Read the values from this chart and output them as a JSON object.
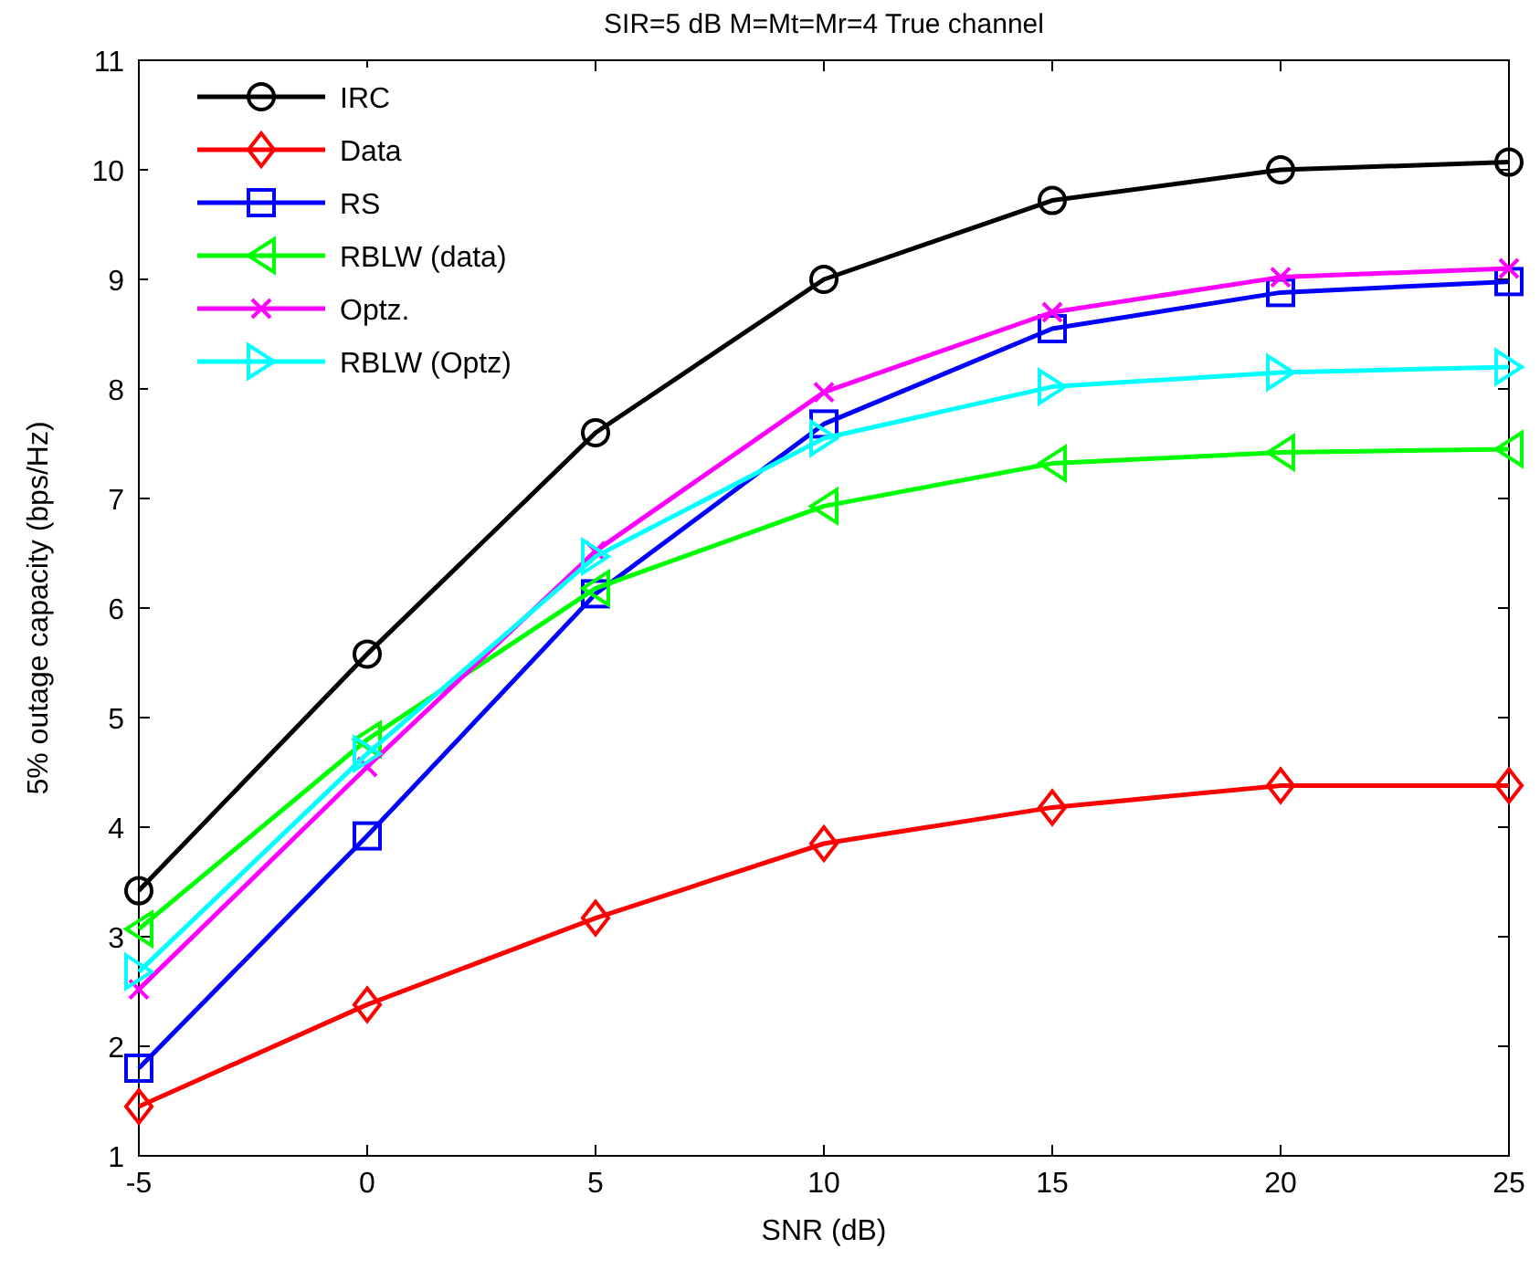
{
  "chart_data": {
    "type": "line",
    "title": "SIR=5 dB M=Mt=Mr=4 True channel",
    "xlabel": "SNR (dB)",
    "ylabel": "5% outage capacity (bps/Hz)",
    "x": [
      -5,
      0,
      5,
      10,
      15,
      20,
      25
    ],
    "xlim": [
      -5,
      25
    ],
    "xticks": [
      -5,
      0,
      5,
      10,
      15,
      20,
      25
    ],
    "ylim": [
      1,
      11
    ],
    "yticks": [
      1,
      2,
      3,
      4,
      5,
      6,
      7,
      8,
      9,
      10,
      11
    ],
    "grid": false,
    "legend": "top left",
    "line_style": "solid",
    "series": [
      {
        "name": "IRC",
        "color": "#000000",
        "marker": "circle",
        "values": [
          3.42,
          5.58,
          7.6,
          9.0,
          9.72,
          10.0,
          10.07
        ]
      },
      {
        "name": "Data",
        "color": "#ff0000",
        "marker": "diamond",
        "values": [
          1.45,
          2.38,
          3.17,
          3.85,
          4.18,
          4.38,
          4.38
        ]
      },
      {
        "name": "RS",
        "color": "#0000ff",
        "marker": "square",
        "values": [
          1.8,
          3.92,
          6.13,
          7.68,
          8.55,
          8.88,
          8.98
        ]
      },
      {
        "name": "RBLW (data)",
        "color": "#00ff00",
        "marker": "triangle-left",
        "values": [
          3.07,
          4.8,
          6.18,
          6.93,
          7.32,
          7.42,
          7.45
        ]
      },
      {
        "name": "Optz.",
        "color": "#ff00ff",
        "marker": "cross",
        "values": [
          2.52,
          4.55,
          6.52,
          7.97,
          8.7,
          9.02,
          9.1
        ]
      },
      {
        "name": "RBLW (Optz)",
        "color": "#00ffff",
        "marker": "triangle-right",
        "values": [
          2.68,
          4.67,
          6.47,
          7.55,
          8.02,
          8.15,
          8.2
        ]
      }
    ]
  }
}
